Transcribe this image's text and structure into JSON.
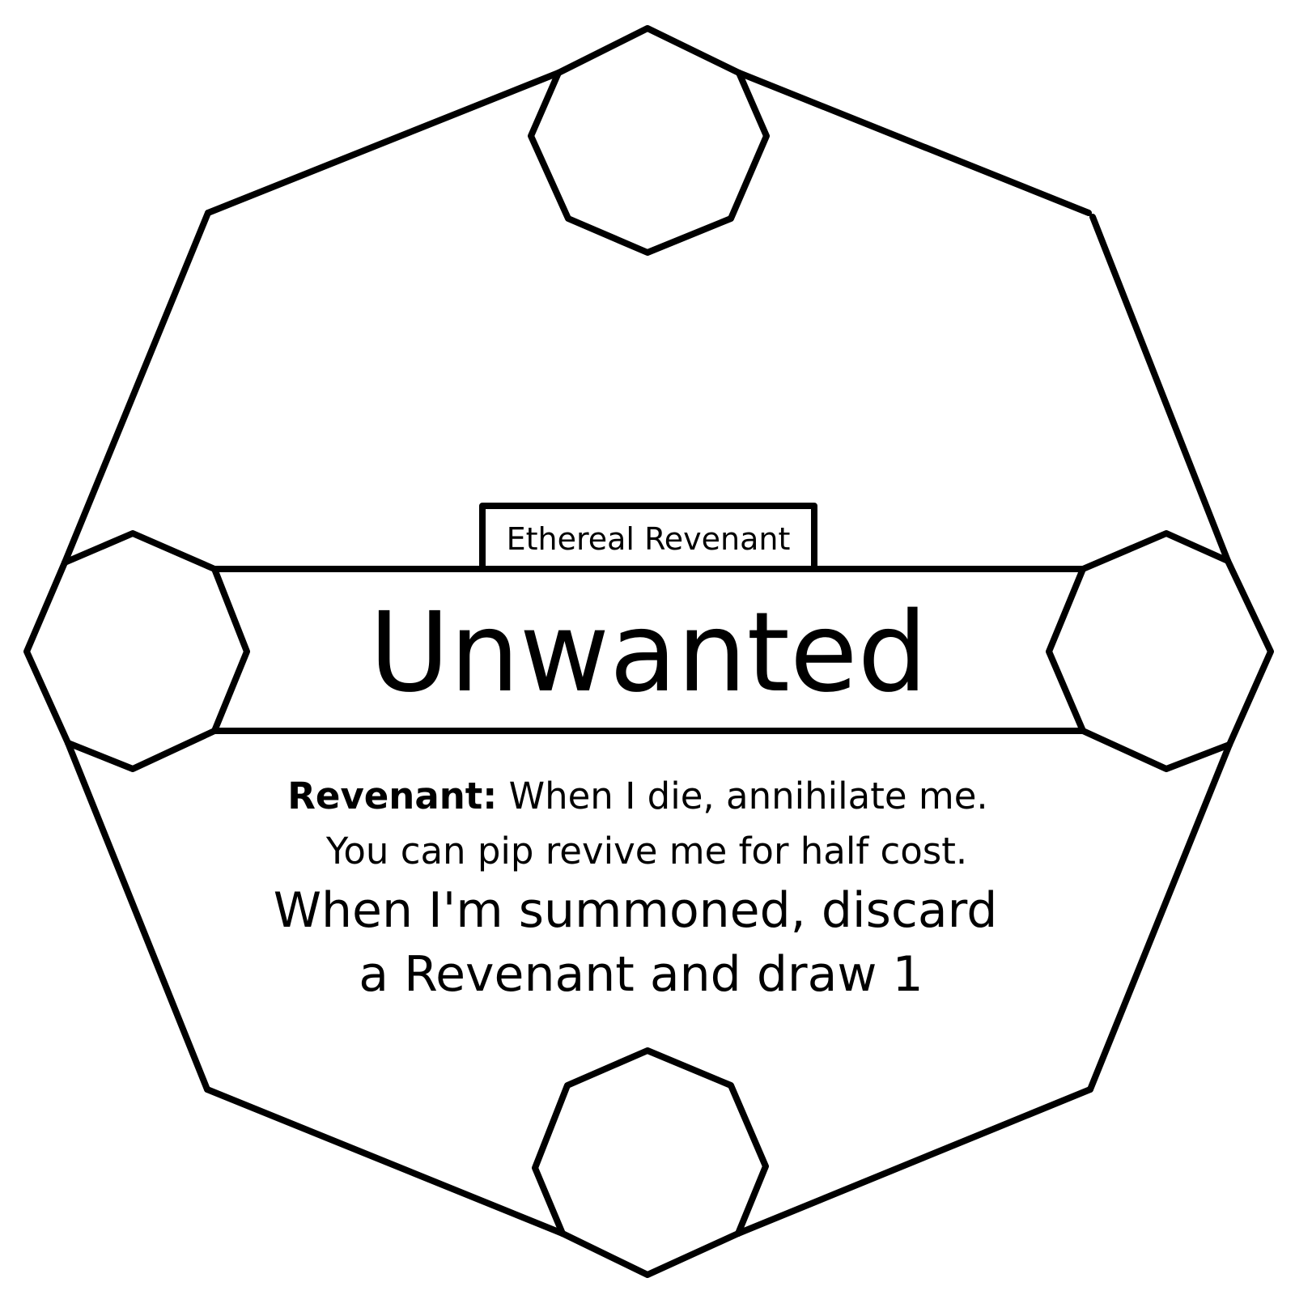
{
  "card": {
    "type_label": "Ethereal Revenant",
    "name": "Unwanted",
    "ability": {
      "keyword": "Revenant:",
      "line1_rest": " When I die, annihilate me.",
      "line2": "You can pip revive me for half cost."
    },
    "effect": {
      "line1": "When I'm summoned, discard",
      "line2": "a Revenant and draw 1"
    }
  },
  "colors": {
    "ink": "#000000",
    "background": "#ffffff"
  }
}
